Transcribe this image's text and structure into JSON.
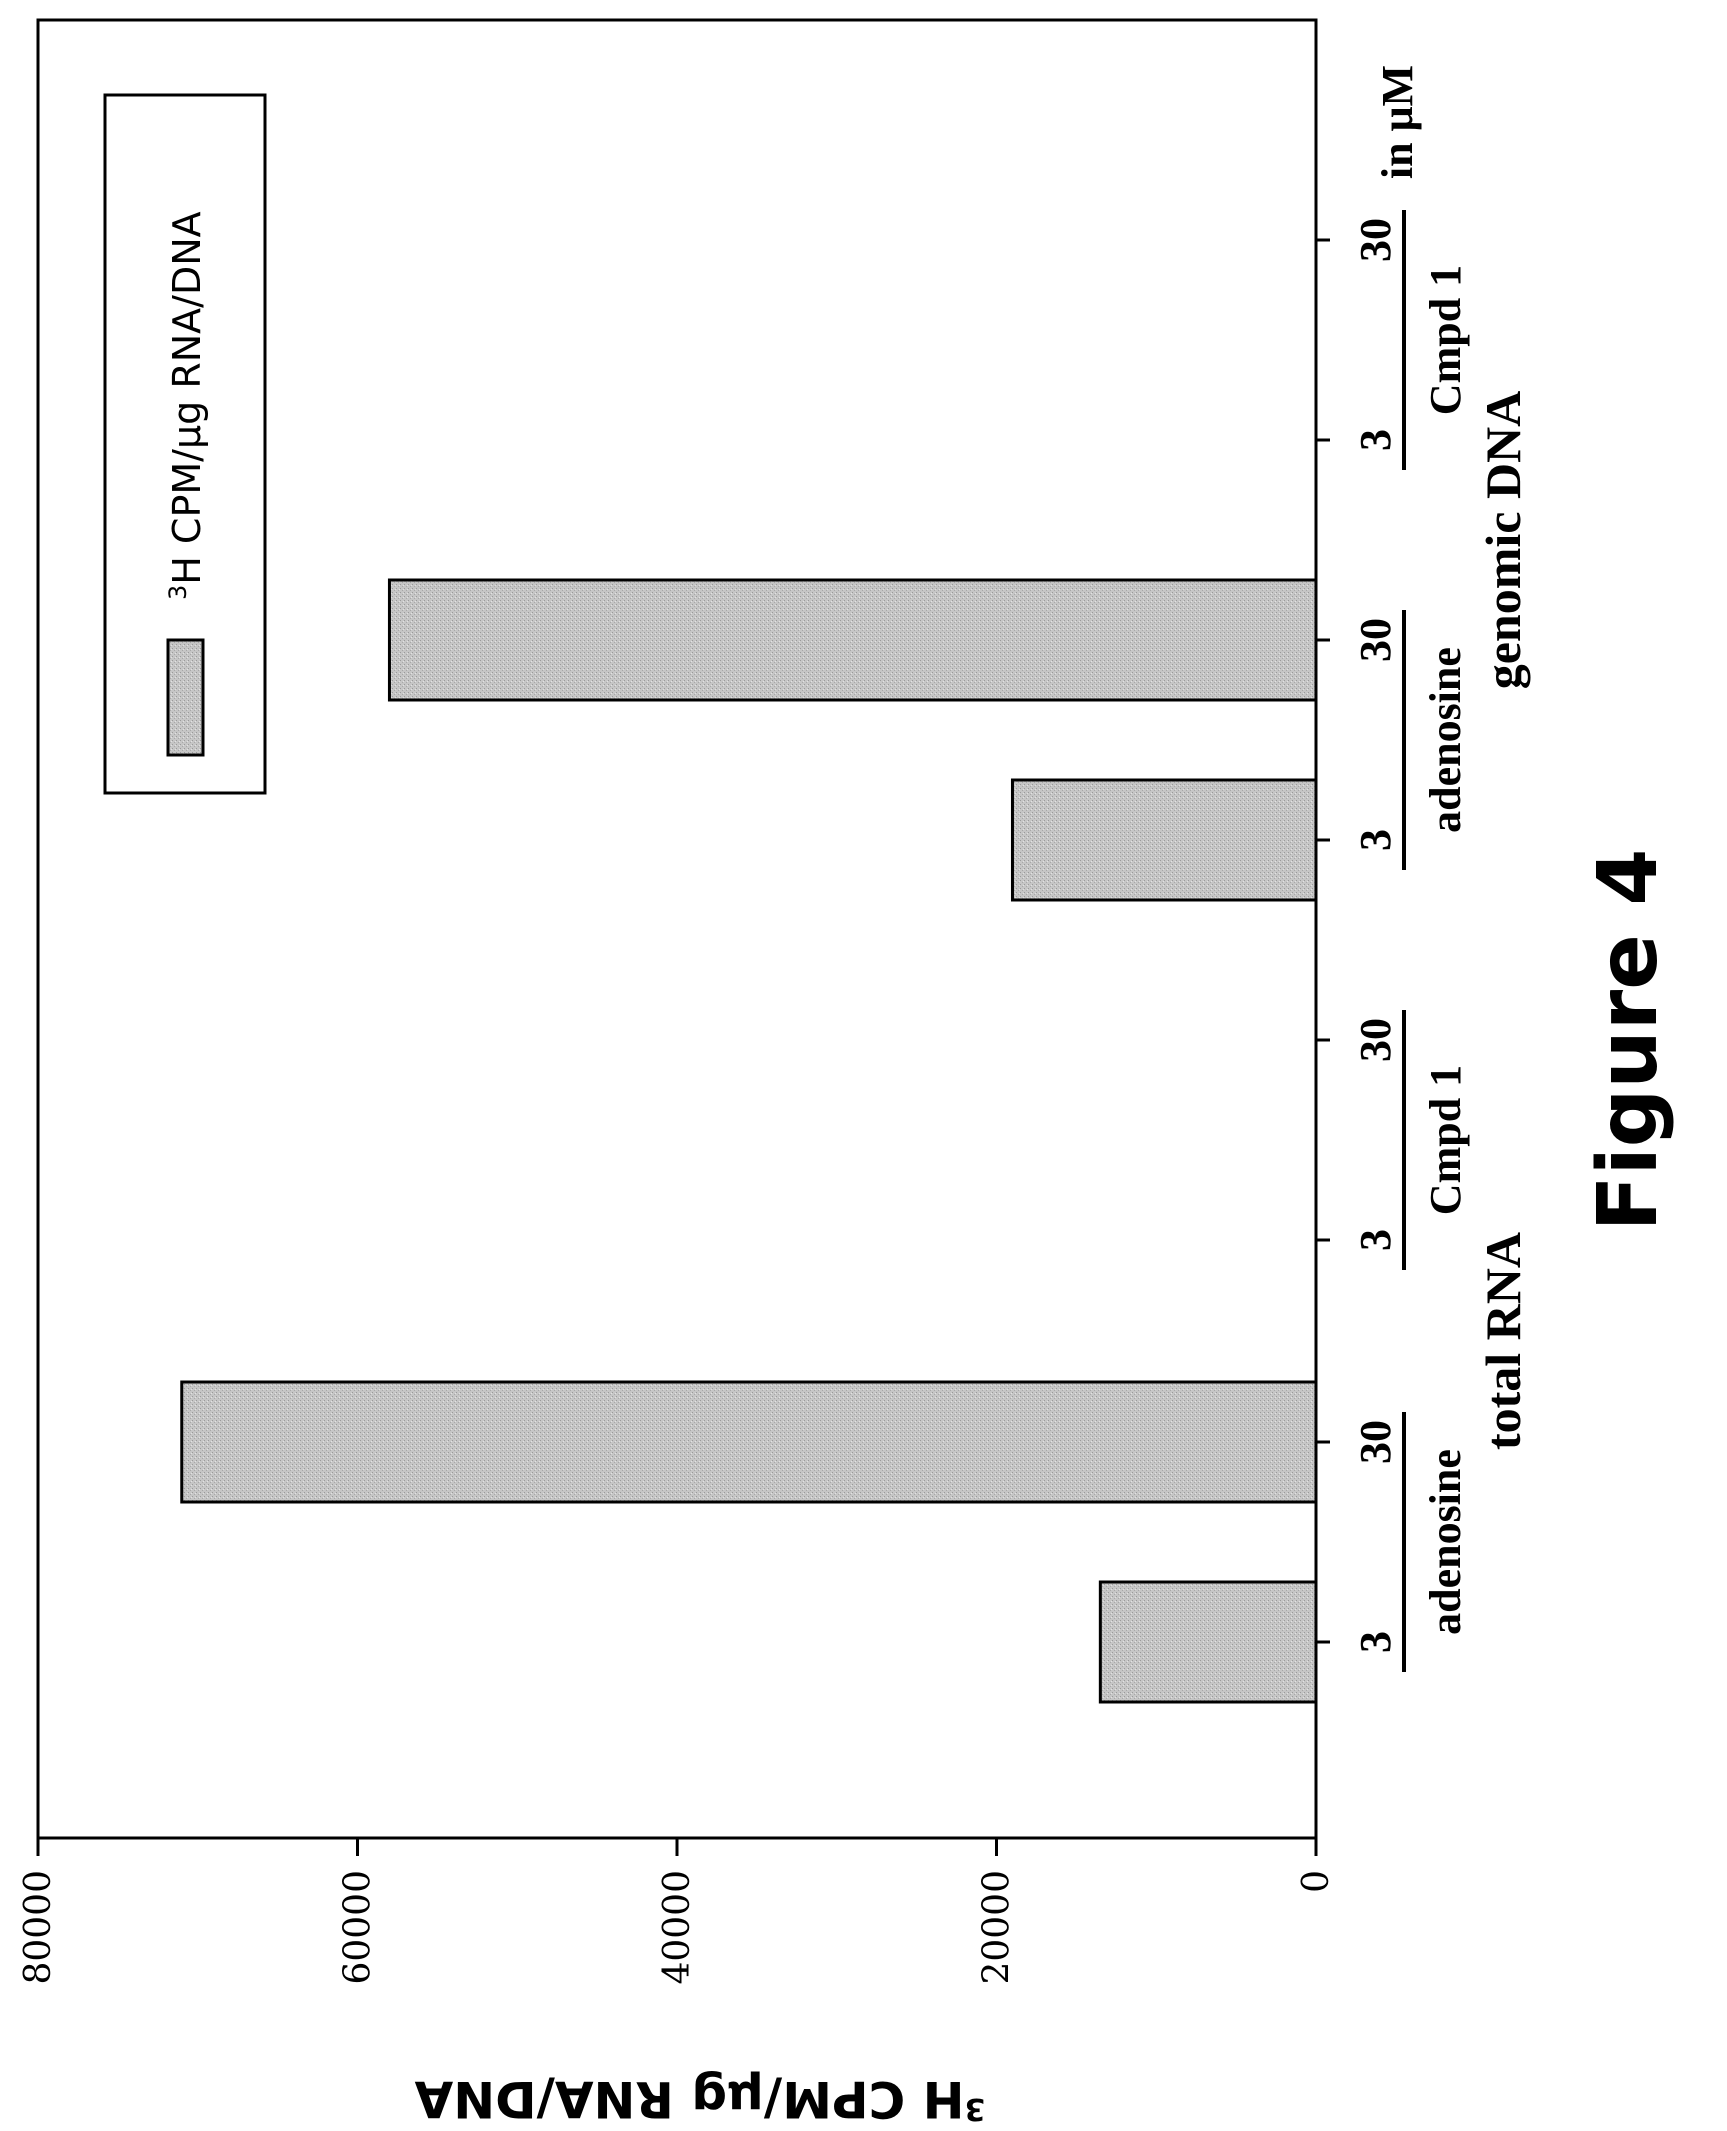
{
  "figure_label": "Figure 4",
  "chart_data": {
    "type": "bar",
    "orientation": "rotated-90",
    "ylabel": "3H CPM/μg RNA/DNA",
    "ylabel_sup": "3",
    "ylabel_rest": "H CPM/μg RNA/DNA",
    "ylim": [
      0,
      80000
    ],
    "yticks": [
      "0",
      "20000",
      "40000",
      "60000",
      "80000"
    ],
    "ytick_values": [
      0,
      20000,
      40000,
      60000,
      80000
    ],
    "categories": [
      "3",
      "30",
      "3",
      "30",
      "3",
      "30",
      "3",
      "30"
    ],
    "values": [
      13500,
      71000,
      0,
      0,
      19000,
      58000,
      0,
      0
    ],
    "series": [
      {
        "name": "3H CPM/μg RNA/DNA",
        "values": [
          13500,
          71000,
          0,
          0,
          19000,
          58000,
          0,
          0
        ]
      }
    ],
    "legend": {
      "sup": "3",
      "rest": "H CPM/μg RNA/DNA",
      "placement": "top-right"
    },
    "compound_labels": [
      "adenosine",
      "Cmpd 1",
      "adenosine",
      "Cmpd 1"
    ],
    "group_labels": [
      "total RNA",
      "genomic DNA"
    ],
    "unit_label": "in μM",
    "bar_color": "#c8c8c8",
    "grid": false
  }
}
